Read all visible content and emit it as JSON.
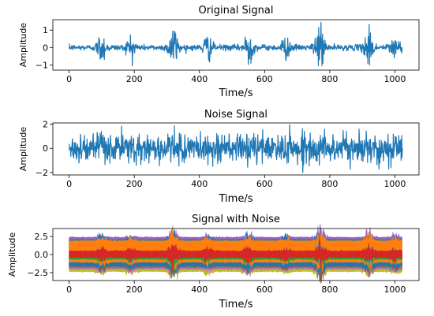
{
  "chart_data": [
    {
      "type": "line",
      "title": "Original Signal",
      "xlabel": "Time/s",
      "ylabel": "Amplitude",
      "xlim": [
        -50,
        1074
      ],
      "ylim": [
        -1.3,
        1.6
      ],
      "xticks": [
        0,
        200,
        400,
        600,
        800,
        1000
      ],
      "yticks": [
        -1,
        0,
        1
      ],
      "grid": false,
      "series": [
        {
          "color": "#1f77b4",
          "kind": "random_bursts",
          "n_points": 1024,
          "base_amplitude": 0.15,
          "bursts": [
            [
              100,
              0.7
            ],
            [
              190,
              0.6
            ],
            [
              320,
              1.1
            ],
            [
              425,
              0.6
            ],
            [
              550,
              0.9
            ],
            [
              665,
              0.5
            ],
            [
              770,
              1.4
            ],
            [
              920,
              1.0
            ],
            [
              1000,
              0.6
            ]
          ]
        }
      ]
    },
    {
      "type": "line",
      "title": "Noise Signal",
      "xlabel": "Time/s",
      "ylabel": "Amplitude",
      "xlim": [
        -50,
        1074
      ],
      "ylim": [
        -2.2,
        2.1
      ],
      "xticks": [
        0,
        200,
        400,
        600,
        800,
        1000
      ],
      "yticks": [
        -2,
        0,
        2
      ],
      "grid": false,
      "series": [
        {
          "color": "#1f77b4",
          "kind": "random_noise",
          "n_points": 1024,
          "std": 0.6,
          "min": -2.0,
          "max": 1.95
        }
      ]
    },
    {
      "type": "area",
      "title": "Signal with Noise",
      "xlabel": "Time/s",
      "ylabel": "Amplitude",
      "xlim": [
        -50,
        1074
      ],
      "ylim": [
        -3.6,
        3.6
      ],
      "xticks": [
        0,
        200,
        400,
        600,
        800,
        1000
      ],
      "yticks": [
        -2.5,
        0.0,
        2.5
      ],
      "ytick_labels": [
        "−2.5",
        "0.0",
        "2.5"
      ],
      "grid": false,
      "bands": [
        {
          "color": "#9467bd",
          "top": 2.35,
          "bottom": 1.85
        },
        {
          "color": "#bcbd22",
          "top": -1.75,
          "bottom": -2.3
        },
        {
          "color": "#e377c2",
          "top": -1.55,
          "bottom": -2.0
        },
        {
          "color": "#7f7f7f",
          "top": -1.4,
          "bottom": -1.85
        },
        {
          "color": "#8c564b",
          "top": -1.2,
          "bottom": -1.6
        },
        {
          "color": "#1f77b4",
          "top": 2.0,
          "bottom": -1.5
        },
        {
          "color": "#ff7f0e",
          "top": 1.85,
          "bottom": -1.0
        },
        {
          "color": "#2ca02c",
          "top": -0.1,
          "bottom": -0.6
        },
        {
          "color": "#17becf",
          "top": 0.15,
          "bottom": -0.2
        },
        {
          "color": "#d62728",
          "top": 0.45,
          "bottom": -0.35
        }
      ],
      "bursts": [
        [
          100,
          0.4
        ],
        [
          190,
          0.3
        ],
        [
          320,
          0.8
        ],
        [
          425,
          0.3
        ],
        [
          550,
          0.5
        ],
        [
          665,
          0.3
        ],
        [
          770,
          0.9
        ],
        [
          920,
          0.6
        ],
        [
          1000,
          0.3
        ]
      ]
    }
  ]
}
